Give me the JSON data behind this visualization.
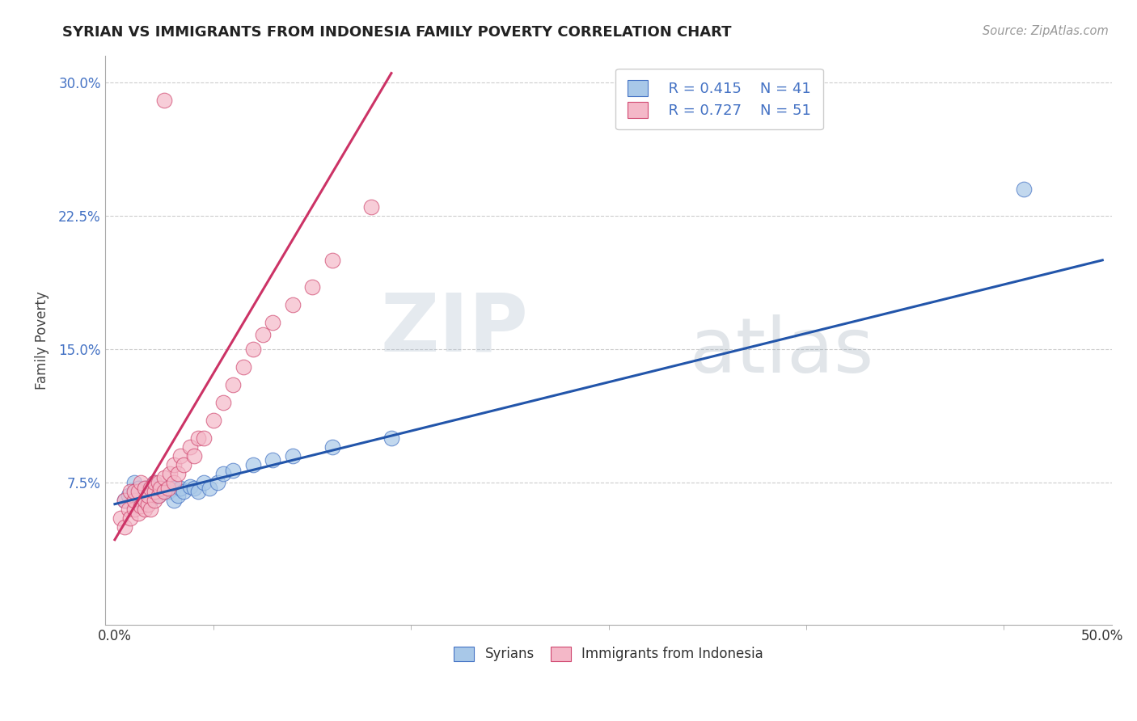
{
  "title": "SYRIAN VS IMMIGRANTS FROM INDONESIA FAMILY POVERTY CORRELATION CHART",
  "source": "Source: ZipAtlas.com",
  "ylabel": "Family Poverty",
  "xlim": [
    -0.005,
    0.505
  ],
  "ylim": [
    -0.005,
    0.315
  ],
  "xticks": [
    0.0,
    0.1,
    0.2,
    0.3,
    0.4,
    0.5
  ],
  "xticklabels": [
    "0.0%",
    "",
    "",
    "",
    "",
    "50.0%"
  ],
  "yticks": [
    0.0,
    0.075,
    0.15,
    0.225,
    0.3
  ],
  "yticklabels": [
    "",
    "7.5%",
    "15.0%",
    "22.5%",
    "30.0%"
  ],
  "legend_R_blue": "R = 0.415",
  "legend_N_blue": "N = 41",
  "legend_R_pink": "R = 0.727",
  "legend_N_pink": "N = 51",
  "blue_fill": "#a8c8e8",
  "blue_edge": "#4472c4",
  "pink_fill": "#f4b8c8",
  "pink_edge": "#d04870",
  "blue_line_color": "#2255aa",
  "pink_line_color": "#cc3366",
  "watermark_zip": "ZIP",
  "watermark_atlas": "atlas",
  "blue_scatter_x": [
    0.005,
    0.007,
    0.01,
    0.01,
    0.012,
    0.013,
    0.015,
    0.015,
    0.017,
    0.018,
    0.018,
    0.02,
    0.02,
    0.02,
    0.022,
    0.022,
    0.023,
    0.024,
    0.025,
    0.025,
    0.027,
    0.028,
    0.03,
    0.03,
    0.032,
    0.033,
    0.035,
    0.038,
    0.04,
    0.042,
    0.045,
    0.048,
    0.052,
    0.055,
    0.06,
    0.07,
    0.08,
    0.09,
    0.11,
    0.14,
    0.46
  ],
  "blue_scatter_y": [
    0.065,
    0.068,
    0.07,
    0.075,
    0.072,
    0.065,
    0.068,
    0.072,
    0.07,
    0.073,
    0.065,
    0.068,
    0.072,
    0.075,
    0.07,
    0.068,
    0.07,
    0.072,
    0.07,
    0.072,
    0.07,
    0.073,
    0.072,
    0.065,
    0.068,
    0.072,
    0.07,
    0.073,
    0.072,
    0.07,
    0.075,
    0.072,
    0.075,
    0.08,
    0.082,
    0.085,
    0.088,
    0.09,
    0.095,
    0.1,
    0.24
  ],
  "pink_scatter_x": [
    0.003,
    0.005,
    0.005,
    0.007,
    0.008,
    0.008,
    0.01,
    0.01,
    0.01,
    0.012,
    0.012,
    0.013,
    0.013,
    0.015,
    0.015,
    0.015,
    0.017,
    0.017,
    0.018,
    0.018,
    0.02,
    0.02,
    0.02,
    0.022,
    0.022,
    0.023,
    0.025,
    0.025,
    0.027,
    0.028,
    0.03,
    0.03,
    0.032,
    0.033,
    0.035,
    0.038,
    0.04,
    0.042,
    0.045,
    0.05,
    0.055,
    0.06,
    0.065,
    0.07,
    0.075,
    0.08,
    0.09,
    0.1,
    0.11,
    0.13,
    0.025
  ],
  "pink_scatter_y": [
    0.055,
    0.05,
    0.065,
    0.06,
    0.055,
    0.07,
    0.06,
    0.065,
    0.07,
    0.058,
    0.07,
    0.062,
    0.075,
    0.06,
    0.065,
    0.072,
    0.063,
    0.068,
    0.06,
    0.072,
    0.065,
    0.07,
    0.075,
    0.068,
    0.075,
    0.072,
    0.07,
    0.078,
    0.072,
    0.08,
    0.075,
    0.085,
    0.08,
    0.09,
    0.085,
    0.095,
    0.09,
    0.1,
    0.1,
    0.11,
    0.12,
    0.13,
    0.14,
    0.15,
    0.158,
    0.165,
    0.175,
    0.185,
    0.2,
    0.23,
    0.29
  ],
  "blue_line_x": [
    0.0,
    0.5
  ],
  "blue_line_y": [
    0.063,
    0.2
  ],
  "pink_line_x": [
    0.0,
    0.14
  ],
  "pink_line_y": [
    0.043,
    0.305
  ],
  "figsize": [
    14.06,
    8.92
  ],
  "dpi": 100
}
